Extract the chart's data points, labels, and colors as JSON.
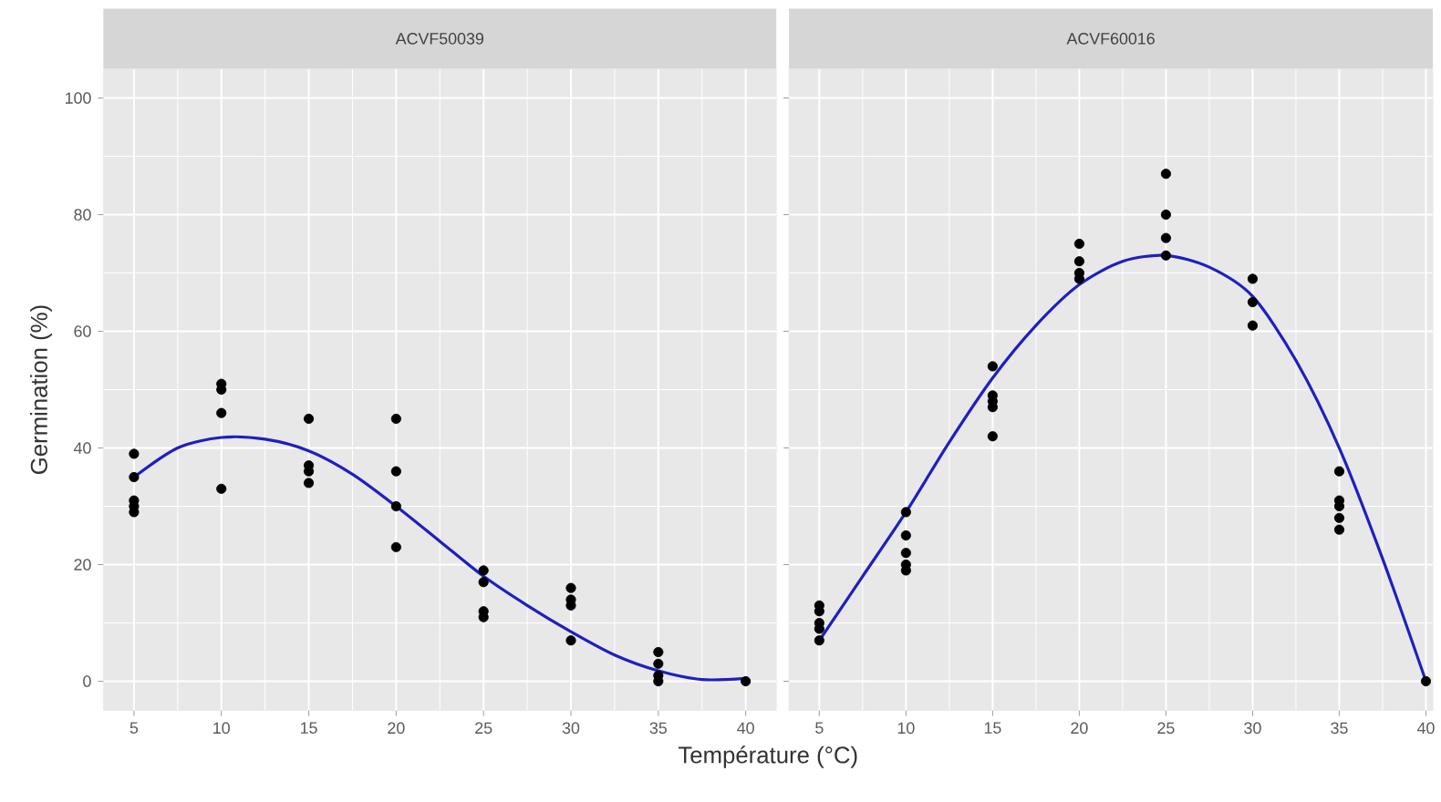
{
  "chart_data": [
    {
      "type": "scatter",
      "title": "ACVF50039",
      "xlabel": "Température (°C)",
      "ylabel": "Germination (%)",
      "xlim": [
        3.25,
        41.75
      ],
      "ylim": [
        -5,
        105
      ],
      "xticks": [
        5,
        10,
        15,
        20,
        25,
        30,
        35,
        40
      ],
      "yticks": [
        0,
        20,
        40,
        60,
        80,
        100
      ],
      "grid": true,
      "marker": "circle",
      "series": [
        {
          "color": "#000000",
          "x": [
            5,
            5,
            5,
            5,
            5,
            10,
            10,
            10,
            10,
            15,
            15,
            15,
            15,
            20,
            20,
            20,
            20,
            25,
            25,
            25,
            25,
            30,
            30,
            30,
            30,
            35,
            35,
            35,
            35,
            40
          ],
          "values": [
            39,
            35,
            31,
            30,
            29,
            51,
            50,
            46,
            33,
            45,
            37,
            36,
            34,
            45,
            36,
            30,
            23,
            19,
            17,
            12,
            11,
            16,
            14,
            13,
            7,
            5,
            3,
            1,
            0,
            0
          ]
        },
        {
          "type": "line",
          "color": "#1f1fbf",
          "marker": "none",
          "x": [
            5,
            7.5,
            10,
            12.5,
            15,
            17.5,
            20,
            22.5,
            25,
            27.5,
            30,
            32.5,
            35,
            37.5,
            40
          ],
          "values": [
            35,
            40,
            41.8,
            41.5,
            39.5,
            35.5,
            30,
            24,
            18,
            13,
            8.5,
            4.5,
            1.8,
            0.3,
            0.5
          ]
        }
      ]
    },
    {
      "type": "scatter",
      "title": "ACVF60016",
      "xlim": [
        3.25,
        40.4
      ],
      "ylim": [
        -5,
        105
      ],
      "xticks": [
        5,
        10,
        15,
        20,
        25,
        30,
        35,
        40
      ],
      "yticks": [
        0,
        20,
        40,
        60,
        80,
        100
      ],
      "tick_labels": "x",
      "grid": true,
      "marker": "circle",
      "series": [
        {
          "color": "#000000",
          "x": [
            5,
            5,
            5,
            5,
            5,
            10,
            10,
            10,
            10,
            10,
            15,
            15,
            15,
            15,
            15,
            20,
            20,
            20,
            20,
            25,
            25,
            25,
            25,
            30,
            30,
            30,
            35,
            35,
            35,
            35,
            35,
            40
          ],
          "values": [
            13,
            12,
            10,
            9,
            7,
            29,
            25,
            22,
            20,
            19,
            54,
            49,
            48,
            47,
            42,
            75,
            72,
            70,
            69,
            87,
            80,
            76,
            73,
            69,
            65,
            61,
            36,
            31,
            30,
            28,
            26,
            0
          ]
        },
        {
          "type": "line",
          "color": "#1f1fbf",
          "marker": "none",
          "x": [
            5,
            7.5,
            10,
            12.5,
            15,
            17.5,
            20,
            22.5,
            25,
            27.5,
            30,
            32.5,
            35,
            37.5,
            40
          ],
          "values": [
            7,
            18,
            29,
            41,
            52,
            61,
            68,
            72,
            73,
            71,
            66,
            55,
            40,
            21,
            0
          ]
        }
      ]
    }
  ]
}
